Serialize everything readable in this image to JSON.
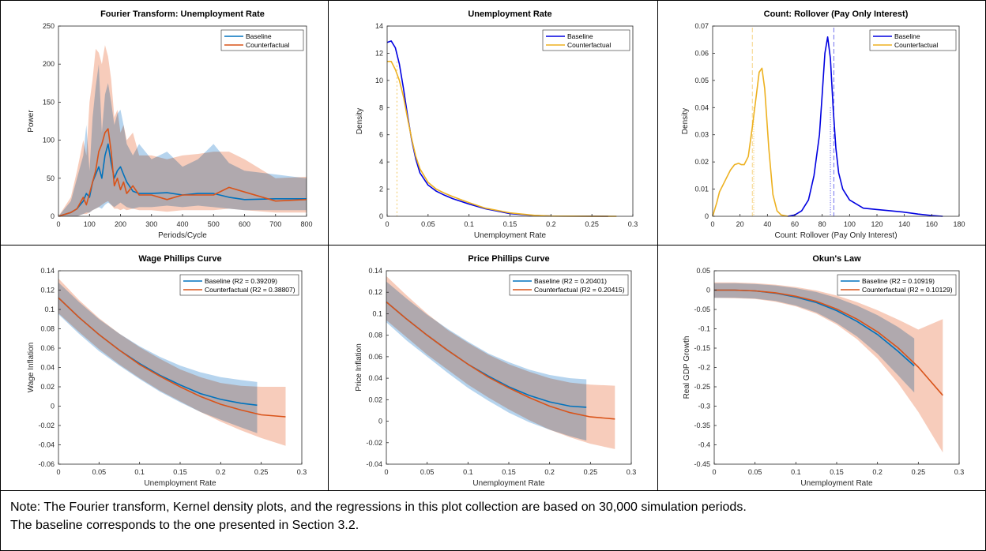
{
  "note": {
    "line1": "Note: The Fourier transform, Kernel density plots, and the regressions in this plot collection are based on 30,000 simulation periods.",
    "line2": "The baseline corresponds to the one presented in Section 3.2."
  },
  "colors": {
    "baseline_line": "#0072BD",
    "counterfactual_line": "#D95319",
    "baseline_density": "#0000E0",
    "counterfactual_density": "#EDB120",
    "baseline_band": "#9EC6E8",
    "counterfactual_band": "#F4B79E",
    "overlap_band": "#A4A4A8"
  },
  "chart_data": [
    {
      "type": "line",
      "title": "Fourier Transform: Unemployment Rate",
      "xlabel": "Periods/Cycle",
      "ylabel": "Power",
      "xlim": [
        0,
        800
      ],
      "ylim": [
        0,
        250
      ],
      "xticks": [
        0,
        100,
        200,
        300,
        400,
        500,
        600,
        700,
        800
      ],
      "xtick_labels": [
        "0",
        "100",
        "200",
        "300",
        "400",
        "500",
        "600",
        "700",
        "800"
      ],
      "yticks": [
        0,
        50,
        100,
        150,
        200,
        250
      ],
      "ytick_labels": [
        "0",
        "50",
        "100",
        "150",
        "200",
        "250"
      ],
      "legend": "top-right",
      "series": [
        {
          "name": "Baseline",
          "x": [
            0,
            40,
            60,
            80,
            90,
            100,
            110,
            120,
            130,
            140,
            150,
            160,
            170,
            180,
            190,
            200,
            210,
            220,
            240,
            260,
            300,
            350,
            400,
            450,
            500,
            550,
            600,
            700,
            800
          ],
          "y": [
            0,
            5,
            10,
            20,
            30,
            25,
            45,
            55,
            65,
            50,
            80,
            95,
            70,
            50,
            60,
            65,
            55,
            45,
            33,
            30,
            30,
            31,
            28,
            30,
            30,
            25,
            22,
            23,
            23
          ],
          "band_low": [
            0,
            0,
            0,
            3,
            5,
            5,
            8,
            10,
            12,
            10,
            15,
            18,
            15,
            12,
            15,
            18,
            15,
            12,
            10,
            12,
            12,
            14,
            12,
            14,
            12,
            10,
            8,
            8,
            8
          ],
          "band_high": [
            0,
            20,
            50,
            80,
            120,
            60,
            130,
            170,
            200,
            110,
            160,
            175,
            150,
            120,
            135,
            140,
            120,
            95,
            80,
            95,
            75,
            85,
            65,
            75,
            95,
            70,
            60,
            55,
            50
          ]
        },
        {
          "name": "Counterfactual",
          "x": [
            0,
            40,
            60,
            80,
            90,
            100,
            110,
            120,
            130,
            140,
            150,
            160,
            170,
            180,
            190,
            200,
            210,
            220,
            240,
            260,
            300,
            350,
            400,
            450,
            500,
            550,
            600,
            700,
            800
          ],
          "y": [
            0,
            5,
            10,
            25,
            15,
            30,
            45,
            60,
            85,
            95,
            110,
            115,
            85,
            40,
            50,
            35,
            45,
            30,
            40,
            28,
            28,
            22,
            28,
            28,
            28,
            38,
            32,
            20,
            22
          ],
          "band_low": [
            0,
            0,
            0,
            3,
            3,
            5,
            8,
            10,
            12,
            15,
            18,
            20,
            15,
            10,
            10,
            8,
            10,
            8,
            10,
            8,
            8,
            6,
            8,
            8,
            8,
            10,
            8,
            5,
            5
          ],
          "band_high": [
            0,
            25,
            60,
            100,
            80,
            150,
            180,
            220,
            215,
            200,
            225,
            210,
            180,
            130,
            140,
            110,
            120,
            100,
            110,
            80,
            80,
            75,
            80,
            82,
            85,
            85,
            75,
            50,
            52
          ]
        }
      ]
    },
    {
      "type": "line",
      "title": "Unemployment Rate",
      "xlabel": "Unemployment Rate",
      "ylabel": "Density",
      "xlim": [
        0,
        0.3
      ],
      "ylim": [
        0,
        14
      ],
      "xticks": [
        0,
        0.05,
        0.1,
        0.15,
        0.2,
        0.25,
        0.3
      ],
      "xtick_labels": [
        "0",
        "0.05",
        "0.1",
        "0.15",
        "0.2",
        "0.25",
        "0.3"
      ],
      "yticks": [
        0,
        2,
        4,
        6,
        8,
        10,
        12,
        14
      ],
      "ytick_labels": [
        "0",
        "2",
        "4",
        "6",
        "8",
        "10",
        "12",
        "14"
      ],
      "legend": "top-right",
      "series": [
        {
          "name": "Baseline",
          "x": [
            0,
            0.005,
            0.01,
            0.015,
            0.02,
            0.025,
            0.03,
            0.035,
            0.04,
            0.05,
            0.06,
            0.07,
            0.08,
            0.1,
            0.12,
            0.15,
            0.18,
            0.2,
            0.25,
            0.27
          ],
          "y": [
            12.8,
            12.9,
            12.4,
            11.2,
            9.4,
            7.4,
            5.6,
            4.2,
            3.2,
            2.3,
            1.85,
            1.55,
            1.3,
            0.9,
            0.55,
            0.2,
            0.05,
            0.02,
            0.01,
            0
          ]
        },
        {
          "name": "Counterfactual",
          "x": [
            0,
            0.005,
            0.01,
            0.015,
            0.02,
            0.025,
            0.03,
            0.035,
            0.04,
            0.05,
            0.06,
            0.07,
            0.08,
            0.1,
            0.12,
            0.15,
            0.18,
            0.2,
            0.25,
            0.28
          ],
          "y": [
            11.4,
            11.4,
            10.8,
            10.0,
            8.8,
            7.2,
            5.7,
            4.4,
            3.5,
            2.5,
            2.0,
            1.7,
            1.45,
            1.0,
            0.6,
            0.25,
            0.07,
            0.02,
            0.005,
            0
          ]
        }
      ]
    },
    {
      "type": "line",
      "title": "Count: Rollover (Pay Only Interest)",
      "xlabel": "Count: Rollover (Pay Only Interest)",
      "ylabel": "Density",
      "xlim": [
        0,
        180
      ],
      "ylim": [
        0,
        0.07
      ],
      "xticks": [
        0,
        20,
        40,
        60,
        80,
        100,
        120,
        140,
        160,
        180
      ],
      "xtick_labels": [
        "0",
        "20",
        "40",
        "60",
        "80",
        "100",
        "120",
        "140",
        "160",
        "180"
      ],
      "yticks": [
        0,
        0.01,
        0.02,
        0.03,
        0.04,
        0.05,
        0.06,
        0.07
      ],
      "ytick_labels": [
        "0",
        "0.01",
        "0.02",
        "0.03",
        "0.04",
        "0.05",
        "0.06",
        "0.07"
      ],
      "legend": "top-right",
      "series": [
        {
          "name": "Baseline",
          "x": [
            55,
            60,
            65,
            70,
            74,
            78,
            80,
            82,
            84,
            86,
            88,
            90,
            92,
            95,
            100,
            110,
            120,
            130,
            140,
            150,
            160,
            168
          ],
          "y": [
            0,
            0.0005,
            0.002,
            0.006,
            0.015,
            0.03,
            0.045,
            0.06,
            0.066,
            0.058,
            0.04,
            0.025,
            0.016,
            0.01,
            0.006,
            0.003,
            0.0025,
            0.002,
            0.0015,
            0.0008,
            0.0003,
            0
          ],
          "mean_line": 88.5,
          "median_line": 86
        },
        {
          "name": "Counterfactual",
          "x": [
            0,
            3,
            5,
            8,
            10,
            13,
            16,
            19,
            21,
            23,
            26,
            29,
            32,
            34,
            36,
            38,
            41,
            44,
            47,
            50,
            55
          ],
          "y": [
            0,
            0.005,
            0.009,
            0.012,
            0.014,
            0.017,
            0.019,
            0.0195,
            0.019,
            0.019,
            0.022,
            0.033,
            0.045,
            0.053,
            0.0545,
            0.047,
            0.025,
            0.008,
            0.002,
            0.0005,
            0
          ],
          "mean_line": 29,
          "median_line": 30
        }
      ]
    },
    {
      "type": "line",
      "title": "Wage Phillips Curve",
      "xlabel": "Unemployment Rate",
      "ylabel": "Wage Inflation",
      "xlim": [
        0,
        0.3
      ],
      "ylim": [
        -0.06,
        0.14
      ],
      "xticks": [
        0,
        0.05,
        0.1,
        0.15,
        0.2,
        0.25,
        0.3
      ],
      "xtick_labels": [
        "0",
        "0.05",
        "0.1",
        "0.15",
        "0.2",
        "0.25",
        "0.3"
      ],
      "yticks": [
        -0.06,
        -0.04,
        -0.02,
        0,
        0.02,
        0.04,
        0.06,
        0.08,
        0.1,
        0.12,
        0.14
      ],
      "ytick_labels": [
        "-0.06",
        "-0.04",
        "-0.02",
        "0",
        "0.02",
        "0.04",
        "0.06",
        "0.08",
        "0.1",
        "0.12",
        "0.14"
      ],
      "legend": "top-right",
      "series": [
        {
          "name": "Baseline (R2 = 0.39209)",
          "x": [
            0,
            0.025,
            0.05,
            0.075,
            0.1,
            0.125,
            0.15,
            0.175,
            0.2,
            0.225,
            0.245
          ],
          "y": [
            0.112,
            0.092,
            0.074,
            0.058,
            0.044,
            0.032,
            0.022,
            0.013,
            0.007,
            0.003,
            0.001
          ],
          "band_low": [
            0.095,
            0.075,
            0.057,
            0.042,
            0.028,
            0.015,
            0.004,
            -0.006,
            -0.014,
            -0.022,
            -0.028
          ],
          "band_high": [
            0.128,
            0.108,
            0.09,
            0.075,
            0.062,
            0.051,
            0.042,
            0.035,
            0.03,
            0.027,
            0.025
          ]
        },
        {
          "name": "Counterfactual (R2 = 0.38807)",
          "x": [
            0,
            0.025,
            0.05,
            0.075,
            0.1,
            0.125,
            0.15,
            0.175,
            0.2,
            0.225,
            0.25,
            0.28
          ],
          "y": [
            0.112,
            0.092,
            0.074,
            0.058,
            0.043,
            0.031,
            0.02,
            0.01,
            0.002,
            -0.004,
            -0.009,
            -0.011
          ],
          "band_low": [
            0.096,
            0.077,
            0.059,
            0.043,
            0.029,
            0.016,
            0.005,
            -0.006,
            -0.016,
            -0.025,
            -0.033,
            -0.041
          ],
          "band_high": [
            0.132,
            0.11,
            0.091,
            0.075,
            0.061,
            0.049,
            0.038,
            0.03,
            0.024,
            0.021,
            0.02,
            0.02
          ]
        }
      ]
    },
    {
      "type": "line",
      "title": "Price Phillips Curve",
      "xlabel": "Unemployment Rate",
      "ylabel": "Price Inflation",
      "xlim": [
        0,
        0.3
      ],
      "ylim": [
        -0.04,
        0.14
      ],
      "xticks": [
        0,
        0.05,
        0.1,
        0.15,
        0.2,
        0.25,
        0.3
      ],
      "xtick_labels": [
        "0",
        "0.05",
        "0.1",
        "0.15",
        "0.2",
        "0.25",
        "0.3"
      ],
      "yticks": [
        -0.04,
        -0.02,
        0,
        0.02,
        0.04,
        0.06,
        0.08,
        0.1,
        0.12,
        0.14
      ],
      "ytick_labels": [
        "-0.04",
        "-0.02",
        "0",
        "0.02",
        "0.04",
        "0.06",
        "0.08",
        "0.1",
        "0.12",
        "0.14"
      ],
      "legend": "top-right",
      "series": [
        {
          "name": "Baseline (R2 = 0.20401)",
          "x": [
            0,
            0.025,
            0.05,
            0.075,
            0.1,
            0.125,
            0.15,
            0.175,
            0.2,
            0.225,
            0.245
          ],
          "y": [
            0.111,
            0.095,
            0.08,
            0.066,
            0.053,
            0.042,
            0.032,
            0.024,
            0.018,
            0.014,
            0.013
          ],
          "band_low": [
            0.092,
            0.075,
            0.06,
            0.045,
            0.031,
            0.019,
            0.008,
            -0.001,
            -0.008,
            -0.014,
            -0.018
          ],
          "band_high": [
            0.13,
            0.114,
            0.099,
            0.086,
            0.074,
            0.063,
            0.055,
            0.048,
            0.043,
            0.04,
            0.039
          ]
        },
        {
          "name": "Counterfactual (R2 = 0.20415)",
          "x": [
            0,
            0.025,
            0.05,
            0.075,
            0.1,
            0.125,
            0.15,
            0.175,
            0.2,
            0.225,
            0.25,
            0.28
          ],
          "y": [
            0.111,
            0.095,
            0.08,
            0.066,
            0.053,
            0.041,
            0.031,
            0.022,
            0.014,
            0.008,
            0.004,
            0.002
          ],
          "band_low": [
            0.094,
            0.078,
            0.062,
            0.048,
            0.034,
            0.022,
            0.011,
            0.001,
            -0.008,
            -0.015,
            -0.021,
            -0.026
          ],
          "band_high": [
            0.135,
            0.117,
            0.1,
            0.085,
            0.073,
            0.062,
            0.053,
            0.046,
            0.04,
            0.036,
            0.034,
            0.033
          ]
        }
      ]
    },
    {
      "type": "line",
      "title": "Okun's Law",
      "xlabel": "Unemployment Rate",
      "ylabel": "Real GDP Growth",
      "xlim": [
        0,
        0.3
      ],
      "ylim": [
        -0.45,
        0.05
      ],
      "xticks": [
        0,
        0.05,
        0.1,
        0.15,
        0.2,
        0.25,
        0.3
      ],
      "xtick_labels": [
        "0",
        "0.05",
        "0.1",
        "0.15",
        "0.2",
        "0.25",
        "0.3"
      ],
      "yticks": [
        -0.45,
        -0.4,
        -0.35,
        -0.3,
        -0.25,
        -0.2,
        -0.15,
        -0.1,
        -0.05,
        0,
        0.05
      ],
      "ytick_labels": [
        "-0.45",
        "-0.4",
        "-0.35",
        "-0.3",
        "-0.25",
        "-0.2",
        "-0.15",
        "-0.1",
        "-0.05",
        "0",
        "0.05"
      ],
      "legend": "top-right",
      "series": [
        {
          "name": "Baseline (R2 = 0.10919)",
          "x": [
            0,
            0.025,
            0.05,
            0.075,
            0.1,
            0.125,
            0.15,
            0.175,
            0.2,
            0.225,
            0.245
          ],
          "y": [
            0,
            0,
            -0.002,
            -0.008,
            -0.018,
            -0.032,
            -0.053,
            -0.081,
            -0.115,
            -0.158,
            -0.196
          ],
          "band_low": [
            -0.02,
            -0.02,
            -0.022,
            -0.028,
            -0.04,
            -0.058,
            -0.085,
            -0.12,
            -0.165,
            -0.22,
            -0.265
          ],
          "band_high": [
            0.018,
            0.018,
            0.016,
            0.012,
            0.005,
            -0.005,
            -0.02,
            -0.04,
            -0.065,
            -0.095,
            -0.125
          ]
        },
        {
          "name": "Counterfactual (R2 = 0.10129)",
          "x": [
            0,
            0.025,
            0.05,
            0.075,
            0.1,
            0.125,
            0.15,
            0.175,
            0.2,
            0.225,
            0.25,
            0.28
          ],
          "y": [
            0,
            0,
            -0.002,
            -0.007,
            -0.016,
            -0.029,
            -0.049,
            -0.075,
            -0.108,
            -0.149,
            -0.199,
            -0.272
          ],
          "band_low": [
            -0.02,
            -0.021,
            -0.023,
            -0.03,
            -0.042,
            -0.061,
            -0.089,
            -0.127,
            -0.177,
            -0.24,
            -0.315,
            -0.42
          ],
          "band_high": [
            0.02,
            0.02,
            0.018,
            0.014,
            0.008,
            -0.001,
            -0.014,
            -0.031,
            -0.052,
            -0.076,
            -0.102,
            -0.075
          ]
        }
      ]
    }
  ]
}
